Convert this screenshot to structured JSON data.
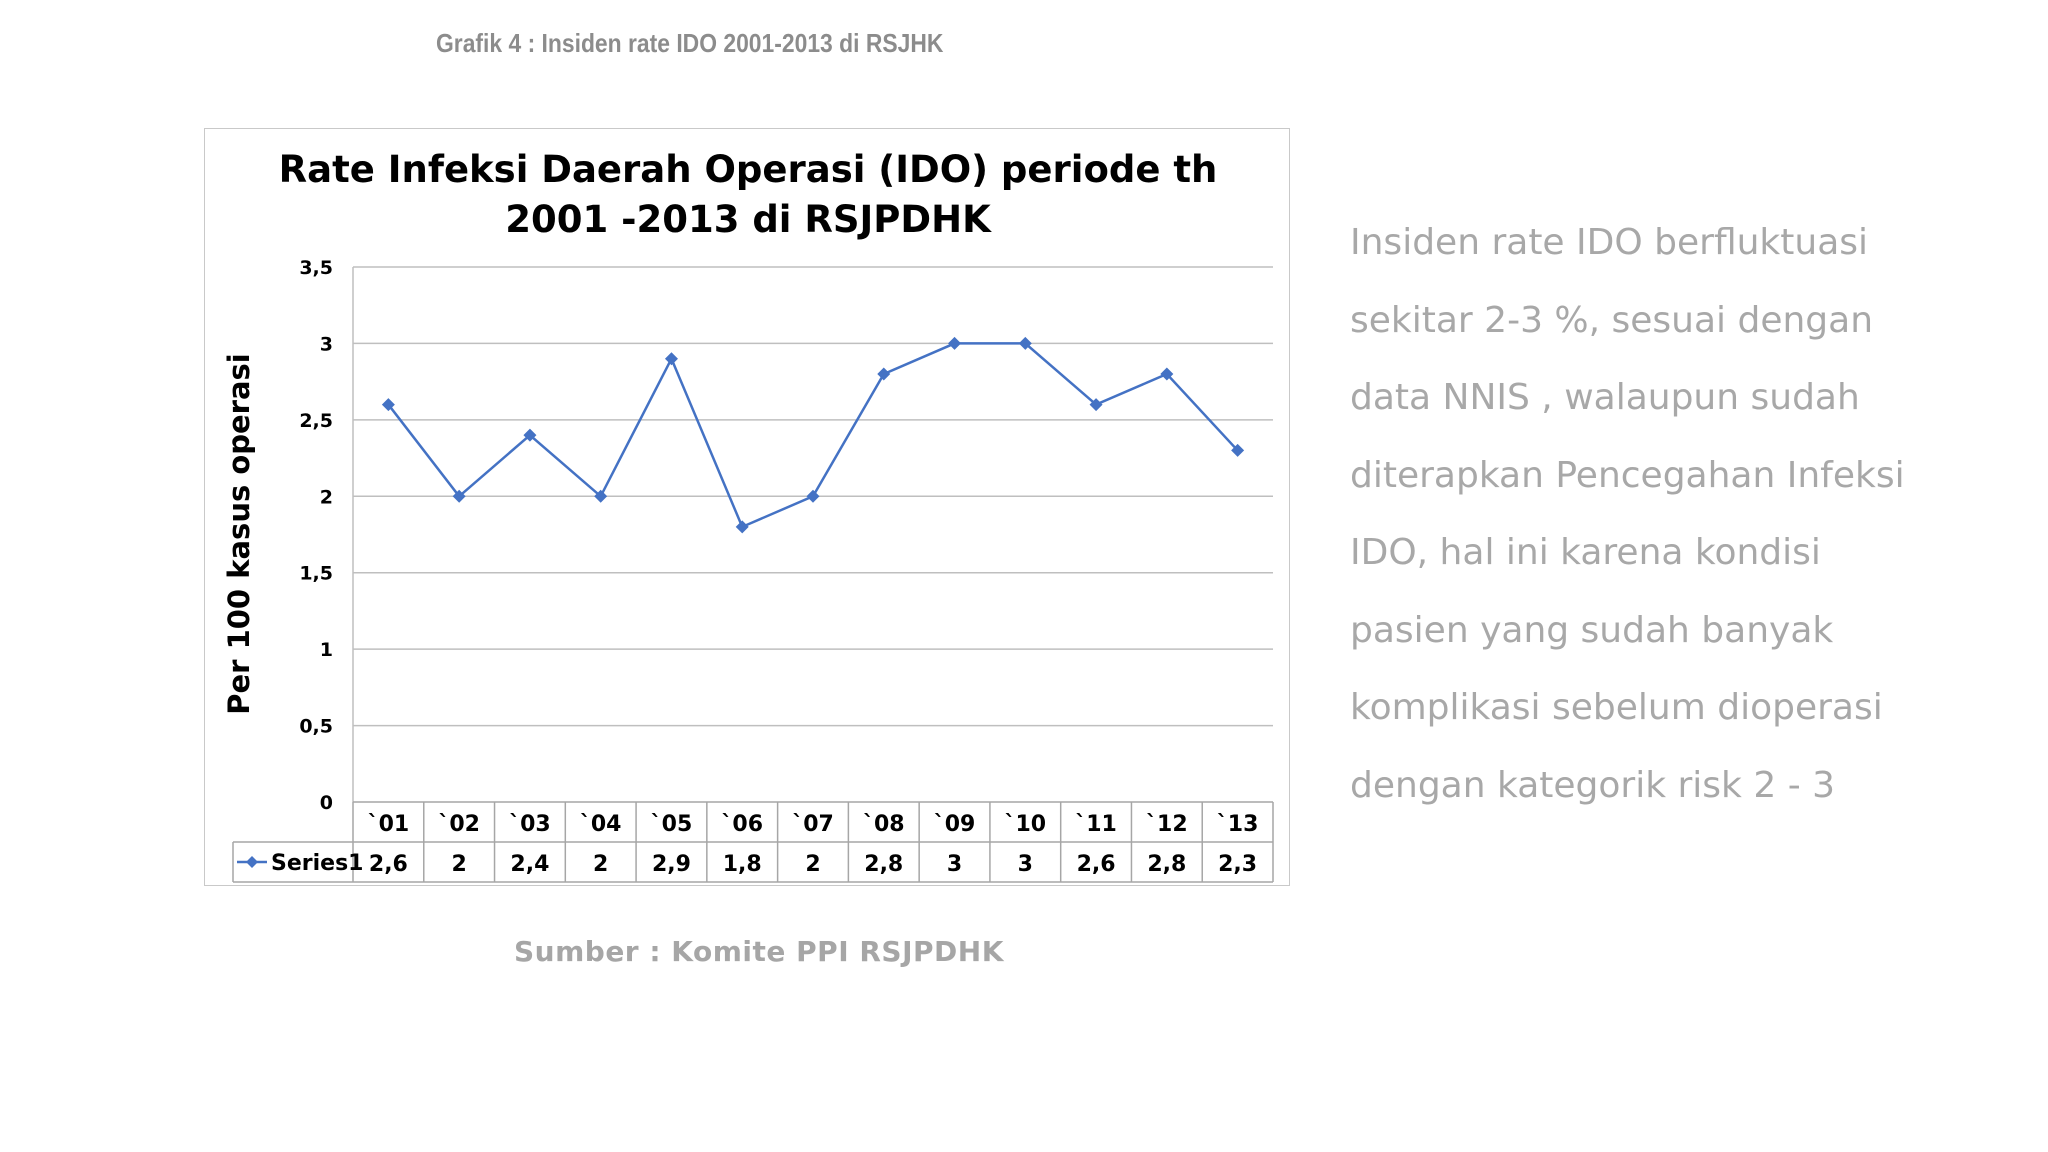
{
  "slide": {
    "caption": "Grafik 4 : Insiden rate IDO 2001-2013 di RSJHK",
    "source": "Sumber : Komite PPI RSJPDHK",
    "description_lines": [
      "Insiden rate IDO berfluktuasi",
      "sekitar 2-3 %, sesuai dengan",
      "data NNIS , walaupun sudah",
      "diterapkan Pencegahan Infeksi",
      "IDO, hal ini karena   kondisi",
      "pasien yang sudah banyak",
      "komplikasi  sebelum dioperasi",
      "dengan kategorik risk  2 - 3"
    ]
  },
  "colors": {
    "series": "#4472c4",
    "grid": "#bfbfbf",
    "caption": "#8c8c8c",
    "side_text": "#a8a8a8"
  },
  "chart_data": {
    "type": "line",
    "title_lines": [
      "Rate Infeksi Daerah Operasi (IDO) periode th",
      "2001 -2013 di RSJPDHK"
    ],
    "ylabel": "Per 100 kasus operasi",
    "xlabel": "",
    "categories": [
      "`01",
      "`02",
      "`03",
      "`04",
      "`05",
      "`06",
      "`07",
      "`08",
      "`09",
      "`10",
      "`11",
      "`12",
      "`13"
    ],
    "series": [
      {
        "name": "Series1",
        "values": [
          2.6,
          2,
          2.4,
          2,
          2.9,
          1.8,
          2,
          2.8,
          3,
          3,
          2.6,
          2.8,
          2.3
        ],
        "value_labels": [
          "2,6",
          "2",
          "2,4",
          "2",
          "2,9",
          "1,8",
          "2",
          "2,8",
          "3",
          "3",
          "2,6",
          "2,8",
          "2,3"
        ],
        "marker": "diamond"
      }
    ],
    "ylim": [
      0,
      3.5
    ],
    "yticks": [
      0,
      0.5,
      1,
      1.5,
      2,
      2.5,
      3,
      3.5
    ],
    "ytick_labels": [
      "0",
      "0,5",
      "1",
      "1,5",
      "2",
      "2,5",
      "3",
      "3,5"
    ],
    "grid": true,
    "legend": "data-table"
  }
}
